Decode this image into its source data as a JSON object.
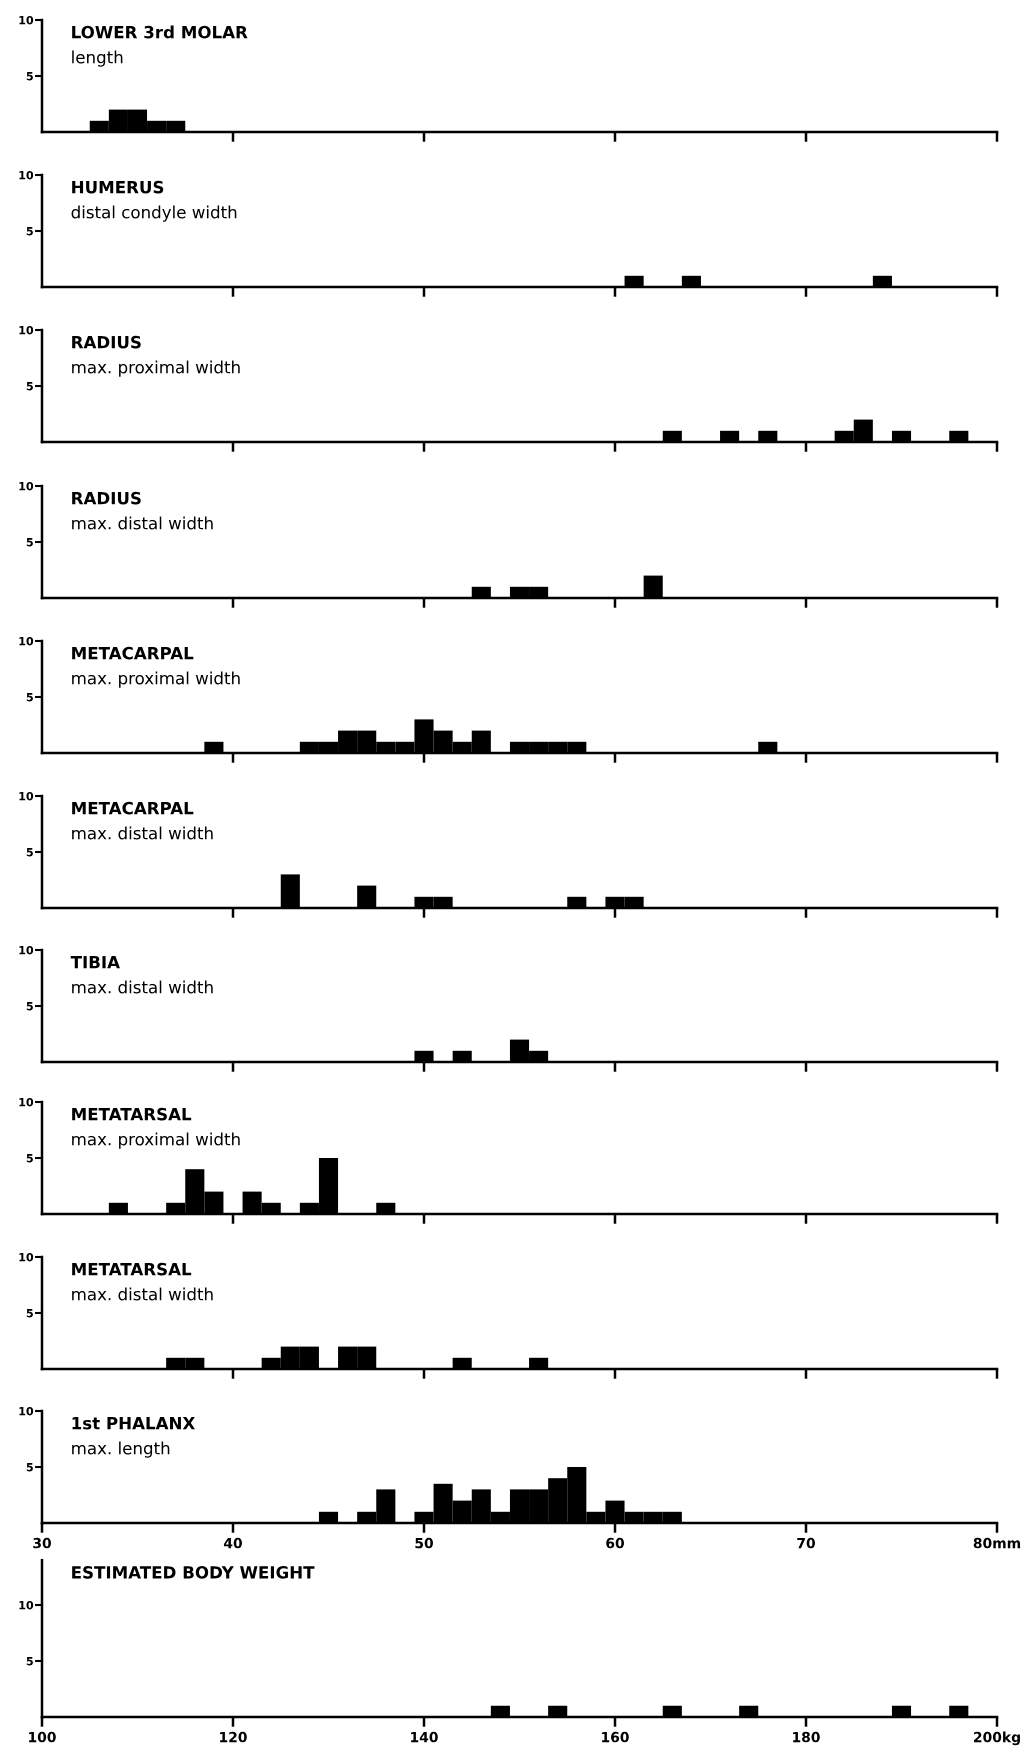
{
  "chart_data": [
    {
      "type": "histogram",
      "title": "LOWER 3rd MOLAR",
      "subtitle": "length",
      "color": "#000000",
      "bins": [
        32.5,
        33.5,
        34.5,
        35.5,
        36.5,
        37.5
      ],
      "values": [
        1,
        2,
        2,
        1,
        1
      ],
      "xlim": [
        30,
        80
      ],
      "ylim": [
        0,
        10
      ],
      "yticks": [
        5,
        10
      ],
      "xticks": [
        {
          "value": 40,
          "label": null
        },
        {
          "value": 50,
          "label": null
        },
        {
          "value": 60,
          "label": null
        },
        {
          "value": 70,
          "label": null
        },
        {
          "value": 80,
          "label": null
        }
      ],
      "tick_labels": "y"
    },
    {
      "type": "histogram",
      "title": "HUMERUS",
      "subtitle": "distal condyle width",
      "color": "#000000",
      "bins": [
        60.5,
        61.5,
        62.5,
        63.5,
        64.5,
        65.5,
        66.5,
        67.5,
        68.5,
        69.5,
        70.5,
        71.5,
        72.5,
        73.5,
        74.5
      ],
      "values": [
        1,
        0,
        0,
        1,
        0,
        0,
        0,
        0,
        0,
        0,
        0,
        0,
        0,
        1
      ],
      "xlim": [
        30,
        80
      ],
      "ylim": [
        0,
        10
      ],
      "yticks": [
        5,
        10
      ],
      "xticks": [
        {
          "value": 40,
          "label": null
        },
        {
          "value": 50,
          "label": null
        },
        {
          "value": 60,
          "label": null
        },
        {
          "value": 70,
          "label": null
        },
        {
          "value": 80,
          "label": null
        }
      ],
      "tick_labels": "y"
    },
    {
      "type": "histogram",
      "title": "RADIUS",
      "subtitle": "max. proximal width",
      "color": "#000000",
      "bins": [
        62.5,
        63.5,
        64.5,
        65.5,
        66.5,
        67.5,
        68.5,
        69.5,
        70.5,
        71.5,
        72.5,
        73.5,
        74.5,
        75.5,
        76.5,
        77.5,
        78.5
      ],
      "values": [
        1,
        0,
        0,
        1,
        0,
        1,
        0,
        0,
        0,
        1,
        2,
        0,
        1,
        0,
        0,
        1
      ],
      "xlim": [
        30,
        80
      ],
      "ylim": [
        0,
        10
      ],
      "yticks": [
        5,
        10
      ],
      "xticks": [
        {
          "value": 40,
          "label": null
        },
        {
          "value": 50,
          "label": null
        },
        {
          "value": 60,
          "label": null
        },
        {
          "value": 70,
          "label": null
        },
        {
          "value": 80,
          "label": null
        }
      ],
      "tick_labels": "y"
    },
    {
      "type": "histogram",
      "title": "RADIUS",
      "subtitle": "max. distal width",
      "color": "#000000",
      "bins": [
        52.5,
        53.5,
        54.5,
        55.5,
        56.5,
        57.5,
        58.5,
        59.5,
        60.5,
        61.5,
        62.5
      ],
      "values": [
        1,
        0,
        1,
        1,
        0,
        0,
        0,
        0,
        0,
        2
      ],
      "xlim": [
        30,
        80
      ],
      "ylim": [
        0,
        10
      ],
      "yticks": [
        5,
        10
      ],
      "xticks": [
        {
          "value": 40,
          "label": null
        },
        {
          "value": 50,
          "label": null
        },
        {
          "value": 60,
          "label": null
        },
        {
          "value": 70,
          "label": null
        },
        {
          "value": 80,
          "label": null
        }
      ],
      "tick_labels": "y"
    },
    {
      "type": "histogram",
      "title": "METACARPAL",
      "subtitle": "max. proximal width",
      "color": "#000000",
      "bins": [
        38.5,
        39.5,
        40.5,
        41.5,
        42.5,
        43.5,
        44.5,
        45.5,
        46.5,
        47.5,
        48.5,
        49.5,
        50.5,
        51.5,
        52.5,
        53.5,
        54.5,
        55.5,
        56.5,
        57.5,
        58.5,
        59.5,
        60.5,
        61.5,
        62.5,
        63.5,
        64.5,
        65.5,
        66.5,
        67.5,
        68.5
      ],
      "values": [
        1,
        0,
        0,
        0,
        0,
        1,
        1,
        2,
        2,
        1,
        1,
        3,
        2,
        1,
        2,
        0,
        1,
        1,
        1,
        1,
        0,
        0,
        0,
        0,
        0,
        0,
        0,
        0,
        0,
        1
      ],
      "xlim": [
        30,
        80
      ],
      "ylim": [
        0,
        10
      ],
      "yticks": [
        5,
        10
      ],
      "xticks": [
        {
          "value": 40,
          "label": null
        },
        {
          "value": 50,
          "label": null
        },
        {
          "value": 60,
          "label": null
        },
        {
          "value": 70,
          "label": null
        },
        {
          "value": 80,
          "label": null
        }
      ],
      "tick_labels": "y"
    },
    {
      "type": "histogram",
      "title": "METACARPAL",
      "subtitle": "max. distal width",
      "color": "#000000",
      "bins": [
        42.5,
        43.5,
        44.5,
        45.5,
        46.5,
        47.5,
        48.5,
        49.5,
        50.5,
        51.5,
        52.5,
        53.5,
        54.5,
        55.5,
        56.5,
        57.5,
        58.5,
        59.5,
        60.5,
        61.5
      ],
      "values": [
        3,
        0,
        0,
        0,
        2,
        0,
        0,
        1,
        1,
        0,
        0,
        0,
        0,
        0,
        0,
        1,
        0,
        1,
        1
      ],
      "xlim": [
        30,
        80
      ],
      "ylim": [
        0,
        10
      ],
      "yticks": [
        5,
        10
      ],
      "xticks": [
        {
          "value": 40,
          "label": null
        },
        {
          "value": 50,
          "label": null
        },
        {
          "value": 60,
          "label": null
        },
        {
          "value": 70,
          "label": null
        },
        {
          "value": 80,
          "label": null
        }
      ],
      "tick_labels": "y"
    },
    {
      "type": "histogram",
      "title": "TIBIA",
      "subtitle": "max. distal width",
      "color": "#000000",
      "bins": [
        49.5,
        50.5,
        51.5,
        52.5,
        53.5,
        54.5,
        55.5,
        56.5
      ],
      "values": [
        1,
        0,
        1,
        0,
        0,
        2,
        1
      ],
      "xlim": [
        30,
        80
      ],
      "ylim": [
        0,
        10
      ],
      "yticks": [
        5,
        10
      ],
      "xticks": [
        {
          "value": 40,
          "label": null
        },
        {
          "value": 50,
          "label": null
        },
        {
          "value": 60,
          "label": null
        },
        {
          "value": 70,
          "label": null
        },
        {
          "value": 80,
          "label": null
        }
      ],
      "tick_labels": "y"
    },
    {
      "type": "histogram",
      "title": "METATARSAL",
      "subtitle": "max. proximal width",
      "color": "#000000",
      "bins": [
        33.5,
        34.5,
        35.5,
        36.5,
        37.5,
        38.5,
        39.5,
        40.5,
        41.5,
        42.5,
        43.5,
        44.5,
        45.5,
        46.5,
        47.5,
        48.5
      ],
      "values": [
        1,
        0,
        0,
        1,
        4,
        2,
        0,
        2,
        1,
        0,
        1,
        5,
        0,
        0,
        1
      ],
      "xlim": [
        30,
        80
      ],
      "ylim": [
        0,
        10
      ],
      "yticks": [
        5,
        10
      ],
      "xticks": [
        {
          "value": 40,
          "label": null
        },
        {
          "value": 50,
          "label": null
        },
        {
          "value": 60,
          "label": null
        },
        {
          "value": 70,
          "label": null
        },
        {
          "value": 80,
          "label": null
        }
      ],
      "tick_labels": "y"
    },
    {
      "type": "histogram",
      "title": "METATARSAL",
      "subtitle": "max. distal width",
      "color": "#000000",
      "bins": [
        36.5,
        37.5,
        38.5,
        39.5,
        40.5,
        41.5,
        42.5,
        43.5,
        44.5,
        45.5,
        46.5,
        47.5,
        48.5,
        49.5,
        50.5,
        51.5,
        52.5,
        53.5,
        54.5,
        55.5,
        56.5
      ],
      "values": [
        1,
        1,
        0,
        0,
        0,
        1,
        2,
        2,
        0,
        2,
        2,
        0,
        0,
        0,
        0,
        1,
        0,
        0,
        0,
        1
      ],
      "xlim": [
        30,
        80
      ],
      "ylim": [
        0,
        10
      ],
      "yticks": [
        5,
        10
      ],
      "xticks": [
        {
          "value": 40,
          "label": null
        },
        {
          "value": 50,
          "label": null
        },
        {
          "value": 60,
          "label": null
        },
        {
          "value": 70,
          "label": null
        },
        {
          "value": 80,
          "label": null
        }
      ],
      "tick_labels": "y"
    },
    {
      "type": "histogram",
      "title": "1st PHALANX",
      "subtitle": "max. length",
      "color": "#000000",
      "bins": [
        44.5,
        45.5,
        46.5,
        47.5,
        48.5,
        49.5,
        50.5,
        51.5,
        52.5,
        53.5,
        54.5,
        55.5,
        56.5,
        57.5,
        58.5,
        59.5,
        60.5,
        61.5,
        62.5,
        63.5
      ],
      "values": [
        1,
        0,
        1,
        3,
        0,
        1,
        3.5,
        2,
        3,
        1,
        3,
        3,
        4,
        5,
        1,
        2,
        1,
        1,
        1
      ],
      "xlim": [
        30,
        80
      ],
      "ylim": [
        0,
        10
      ],
      "yticks": [
        5,
        10
      ],
      "xticks": [
        30,
        40,
        50,
        60,
        70,
        {
          "value": 80,
          "label": "80mm"
        }
      ]
    },
    {
      "type": "histogram",
      "title": "ESTIMATED BODY WEIGHT",
      "color": "#000000",
      "bins": [
        147,
        149,
        151,
        153,
        155,
        157,
        159,
        161,
        163,
        165,
        167,
        169,
        171,
        173,
        175,
        177,
        179,
        181,
        183,
        185,
        187,
        189,
        191,
        193,
        195,
        197
      ],
      "values": [
        1,
        0,
        0,
        1,
        0,
        0,
        0,
        0,
        0,
        1,
        0,
        0,
        0,
        1,
        0,
        0,
        0,
        0,
        0,
        0,
        0,
        1,
        0,
        0,
        1
      ],
      "xlim": [
        100,
        200
      ],
      "ylim": [
        0,
        14
      ],
      "yticks": [
        5,
        10
      ],
      "xticks": [
        100,
        120,
        140,
        160,
        180,
        {
          "value": 200,
          "label": "200kg"
        }
      ]
    }
  ]
}
